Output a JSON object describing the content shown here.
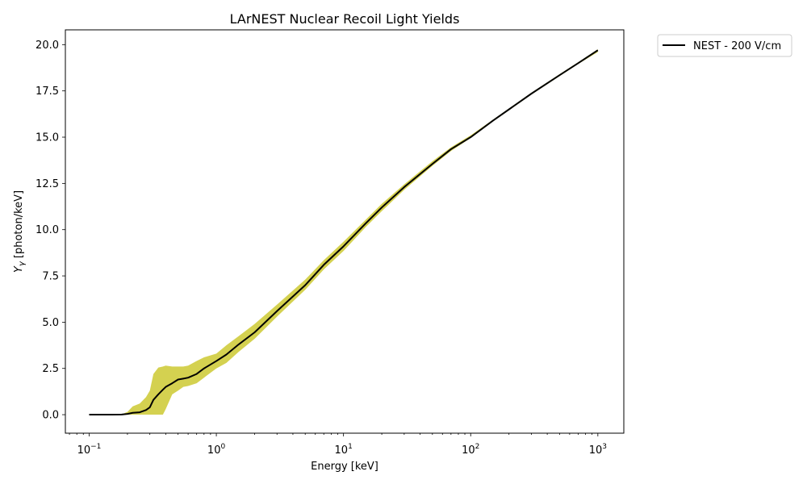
{
  "chart_data": {
    "type": "line",
    "title": "LArNEST Nuclear Recoil Light Yields",
    "xlabel": "Energy [keV]",
    "ylabel": "Y_γ [photon/keV]",
    "x_scale": "log",
    "xlim": [
      0.065,
      1600
    ],
    "ylim": [
      -1.0,
      20.8
    ],
    "grid": false,
    "legend_position": "outside-top-right",
    "x_ticks": [
      {
        "value": 0.1,
        "base": "10",
        "exp": "−1"
      },
      {
        "value": 1,
        "base": "10",
        "exp": "0"
      },
      {
        "value": 10,
        "base": "10",
        "exp": "1"
      },
      {
        "value": 100,
        "base": "10",
        "exp": "2"
      },
      {
        "value": 1000,
        "base": "10",
        "exp": "3"
      }
    ],
    "y_ticks": [
      "0.0",
      "2.5",
      "5.0",
      "7.5",
      "10.0",
      "12.5",
      "15.0",
      "17.5",
      "20.0"
    ],
    "series": [
      {
        "name": "NEST - 200 V/cm",
        "color": "#000000",
        "band_color": "#c9c624",
        "x": [
          0.1,
          0.15,
          0.18,
          0.2,
          0.22,
          0.25,
          0.28,
          0.3,
          0.32,
          0.35,
          0.38,
          0.4,
          0.45,
          0.5,
          0.55,
          0.6,
          0.7,
          0.8,
          1.0,
          1.2,
          1.5,
          2,
          3,
          5,
          7,
          10,
          15,
          20,
          30,
          50,
          70,
          100,
          150,
          200,
          300,
          500,
          700,
          1000
        ],
        "y": [
          0.0,
          0.0,
          0.01,
          0.04,
          0.1,
          0.13,
          0.25,
          0.4,
          0.8,
          1.1,
          1.35,
          1.5,
          1.7,
          1.9,
          1.95,
          2.0,
          2.2,
          2.5,
          2.9,
          3.25,
          3.8,
          4.45,
          5.6,
          7.0,
          8.1,
          9.1,
          10.35,
          11.2,
          12.3,
          13.55,
          14.35,
          15.0,
          15.9,
          16.5,
          17.35,
          18.35,
          19.0,
          19.7
        ],
        "band_lower": [
          0.0,
          0.0,
          0.0,
          0.0,
          0.0,
          0.0,
          0.0,
          0.0,
          0.0,
          0.0,
          0.0,
          0.3,
          1.1,
          1.3,
          1.5,
          1.55,
          1.7,
          2.0,
          2.5,
          2.8,
          3.4,
          4.1,
          5.3,
          6.75,
          7.85,
          8.85,
          10.15,
          11.0,
          12.15,
          13.45,
          14.25,
          14.95,
          15.85,
          16.45,
          17.3,
          18.3,
          18.95,
          19.6
        ],
        "band_upper": [
          0.0,
          0.0,
          0.02,
          0.15,
          0.45,
          0.6,
          0.95,
          1.3,
          2.2,
          2.55,
          2.6,
          2.65,
          2.6,
          2.6,
          2.6,
          2.65,
          2.9,
          3.1,
          3.3,
          3.75,
          4.25,
          4.9,
          5.95,
          7.3,
          8.35,
          9.35,
          10.55,
          11.4,
          12.45,
          13.7,
          14.45,
          15.1,
          15.95,
          16.55,
          17.4,
          18.4,
          19.05,
          19.75
        ]
      }
    ]
  }
}
